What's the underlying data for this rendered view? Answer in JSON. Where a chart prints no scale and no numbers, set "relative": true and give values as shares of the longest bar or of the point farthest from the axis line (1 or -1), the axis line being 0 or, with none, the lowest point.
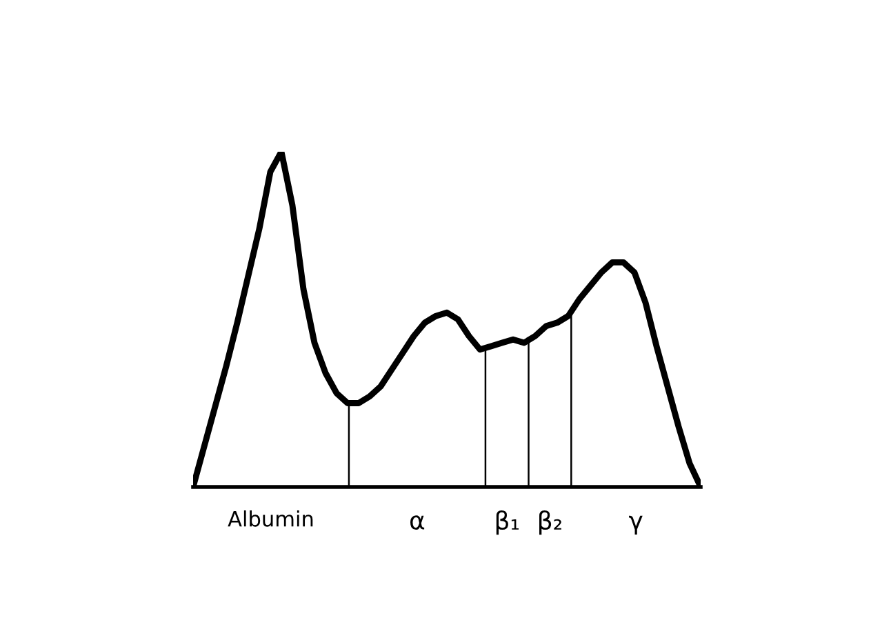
{
  "chart_data": {
    "type": "line",
    "relative": true,
    "legend": false,
    "marker": "none",
    "line_style": "solid",
    "categories": [
      null,
      null,
      null,
      null,
      null,
      null,
      null,
      null,
      null,
      null,
      null,
      null,
      null,
      null,
      null,
      null,
      null,
      null,
      null,
      null,
      null,
      null,
      null,
      null,
      null,
      null,
      null,
      null,
      null,
      null,
      null,
      null,
      null,
      null,
      null,
      null,
      null,
      null,
      null,
      null,
      null,
      null,
      null,
      null,
      null,
      null,
      null
    ],
    "series": [
      {
        "color": "#000000",
        "values": [
          0,
          0.12,
          0.24,
          0.36,
          0.49,
          0.63,
          0.77,
          0.94,
          1.0,
          0.84,
          0.59,
          0.43,
          0.34,
          0.28,
          0.25,
          0.25,
          0.27,
          0.3,
          0.35,
          0.4,
          0.45,
          0.49,
          0.51,
          0.52,
          0.5,
          0.45,
          0.41,
          0.42,
          0.43,
          0.44,
          0.43,
          0.45,
          0.48,
          0.49,
          0.51,
          0.56,
          0.6,
          0.64,
          0.67,
          0.67,
          0.64,
          0.55,
          0.42,
          0.3,
          0.18,
          0.07,
          0
        ]
      }
    ],
    "annotations": [
      "Albumin",
      "α",
      "β₁",
      "β₂",
      "γ"
    ]
  }
}
